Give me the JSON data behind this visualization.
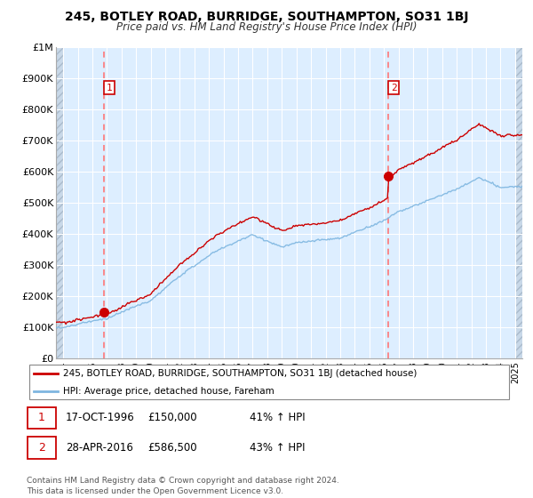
{
  "title": "245, BOTLEY ROAD, BURRIDGE, SOUTHAMPTON, SO31 1BJ",
  "subtitle": "Price paid vs. HM Land Registry's House Price Index (HPI)",
  "ylim": [
    0,
    1000000
  ],
  "yticks": [
    0,
    100000,
    200000,
    300000,
    400000,
    500000,
    600000,
    700000,
    800000,
    900000,
    1000000
  ],
  "ytick_labels": [
    "£0",
    "£100K",
    "£200K",
    "£300K",
    "£400K",
    "£500K",
    "£600K",
    "£700K",
    "£800K",
    "£900K",
    "£1M"
  ],
  "hpi_color": "#7eb6e0",
  "price_color": "#cc0000",
  "marker_color": "#cc0000",
  "vline_color": "#ff7777",
  "chart_bg": "#ddeeff",
  "grid_color": "#bbccdd",
  "sale1_year": 1996.79,
  "sale1_price": 150000,
  "sale2_year": 2016.32,
  "sale2_price": 586500,
  "legend_line1": "245, BOTLEY ROAD, BURRIDGE, SOUTHAMPTON, SO31 1BJ (detached house)",
  "legend_line2": "HPI: Average price, detached house, Fareham",
  "table_row1": [
    "1",
    "17-OCT-1996",
    "£150,000",
    "41% ↑ HPI"
  ],
  "table_row2": [
    "2",
    "28-APR-2016",
    "£586,500",
    "43% ↑ HPI"
  ],
  "footnote": "Contains HM Land Registry data © Crown copyright and database right 2024.\nThis data is licensed under the Open Government Licence v3.0.",
  "xmin": 1993.5,
  "xmax": 2025.5,
  "xtick_start": 1994,
  "xtick_end": 2025
}
